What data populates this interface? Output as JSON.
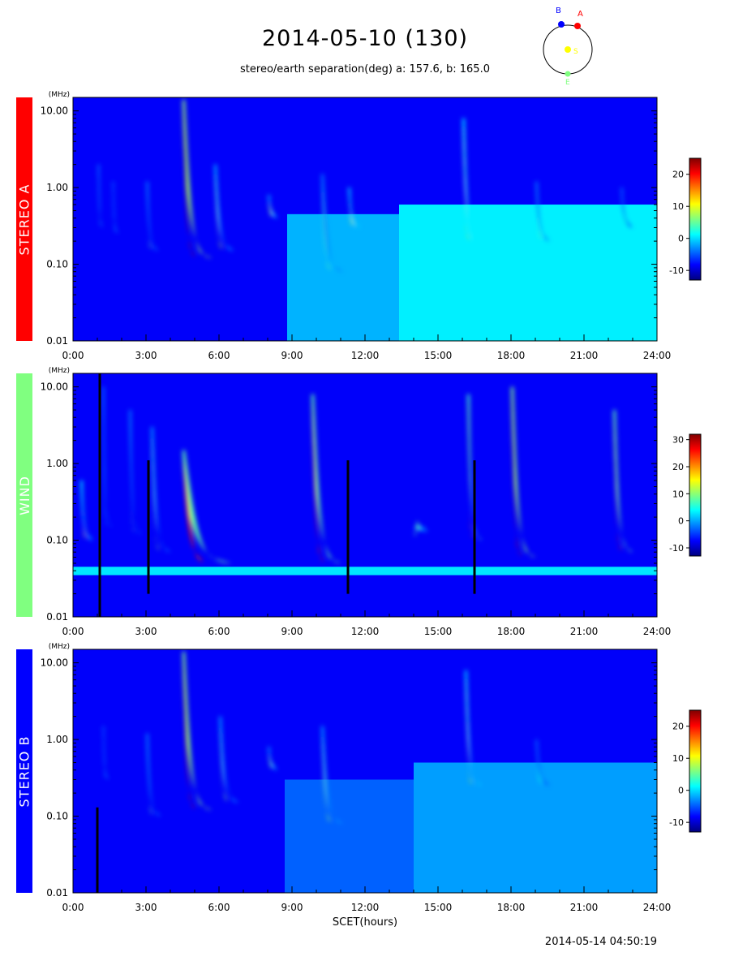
{
  "header": {
    "title": "2014-05-10 (130)",
    "subtitle": "stereo/earth separation(deg) a: 157.6, b: 165.0",
    "timestamp": "2014-05-14 04:50:19"
  },
  "orbit_diagram": {
    "labels": {
      "b": "B",
      "a": "A",
      "s": "S",
      "e": "E"
    },
    "colors": {
      "b": "#0000ff",
      "a": "#ff0000",
      "s": "#ffff00",
      "e": "#80ff80"
    }
  },
  "colormap": [
    "#00007f",
    "#0000ff",
    "#0080ff",
    "#00ffff",
    "#80ff80",
    "#ffff00",
    "#ff8000",
    "#ff0000",
    "#7f0000"
  ],
  "chart_data": [
    {
      "type": "heatmap",
      "panel": "STEREO A",
      "label_color": "#ff0000",
      "yunit": "(MHz)",
      "yscale": "log",
      "ylim": [
        0.01,
        15
      ],
      "yticks": [
        {
          "v": 0.01,
          "t": "0.01"
        },
        {
          "v": 0.1,
          "t": "0.10"
        },
        {
          "v": 1,
          "t": "1.00"
        },
        {
          "v": 10,
          "t": "10.00"
        }
      ],
      "xlim": [
        0,
        24
      ],
      "xticks": [
        "0:00",
        "3:00",
        "6:00",
        "9:00",
        "12:00",
        "15:00",
        "18:00",
        "21:00",
        "24:00"
      ],
      "colorbar": {
        "range": [
          -13,
          25
        ],
        "ticks": [
          20,
          10,
          0,
          -10
        ]
      },
      "background_blocks": [
        {
          "t0": 8.8,
          "t1": 13.4,
          "fmin": 0.01,
          "fmax": 0.45,
          "level": 0.3
        },
        {
          "t0": 13.4,
          "t1": 24,
          "fmin": 0.01,
          "fmax": 0.6,
          "level": 0.36
        }
      ],
      "bursts": [
        {
          "t": 1.0,
          "f_top": 2.0,
          "f_bot": 0.3,
          "level": 0.4,
          "width": 0.25
        },
        {
          "t": 1.6,
          "f_top": 1.2,
          "f_bot": 0.25,
          "level": 0.35,
          "width": 0.3
        },
        {
          "t": 3.0,
          "f_top": 1.2,
          "f_bot": 0.15,
          "level": 0.45,
          "width": 0.5
        },
        {
          "t": 4.5,
          "f_top": 14,
          "f_bot": 0.12,
          "level": 0.95,
          "width": 1.2
        },
        {
          "t": 5.8,
          "f_top": 2.0,
          "f_bot": 0.15,
          "level": 0.55,
          "width": 0.8
        },
        {
          "t": 8.0,
          "f_top": 0.8,
          "f_bot": 0.4,
          "level": 0.55,
          "width": 0.4
        },
        {
          "t": 10.2,
          "f_top": 1.5,
          "f_bot": 0.08,
          "level": 0.45,
          "width": 0.9
        },
        {
          "t": 11.3,
          "f_top": 1.0,
          "f_bot": 0.3,
          "level": 0.6,
          "width": 0.5
        },
        {
          "t": 16.0,
          "f_top": 8.0,
          "f_bot": 0.2,
          "level": 0.65,
          "width": 0.7
        },
        {
          "t": 19.0,
          "f_top": 1.2,
          "f_bot": 0.2,
          "level": 0.45,
          "width": 0.6
        },
        {
          "t": 22.5,
          "f_top": 1.0,
          "f_bot": 0.3,
          "level": 0.4,
          "width": 0.5
        }
      ],
      "lines": []
    },
    {
      "type": "heatmap",
      "panel": "WIND",
      "label_color": "#80ff80",
      "yunit": "(MHz)",
      "yscale": "log",
      "ylim": [
        0.01,
        15
      ],
      "yticks": [
        {
          "v": 0.01,
          "t": "0.01"
        },
        {
          "v": 0.1,
          "t": "0.10"
        },
        {
          "v": 1,
          "t": "1.00"
        },
        {
          "v": 10,
          "t": "10.00"
        }
      ],
      "xlim": [
        0,
        24
      ],
      "xticks": [
        "0:00",
        "3:00",
        "6:00",
        "9:00",
        "12:00",
        "15:00",
        "18:00",
        "21:00",
        "24:00"
      ],
      "colorbar": {
        "range": [
          -13,
          32
        ],
        "ticks": [
          30,
          20,
          10,
          0,
          -10
        ]
      },
      "background_blocks": [
        {
          "t0": 0,
          "t1": 24,
          "fmin": 0.035,
          "fmax": 0.045,
          "level": 0.35
        }
      ],
      "bursts": [
        {
          "t": 0.3,
          "f_top": 0.6,
          "f_bot": 0.1,
          "level": 0.65,
          "width": 0.5
        },
        {
          "t": 1.2,
          "f_top": 10,
          "f_bot": 0.15,
          "level": 0.4,
          "width": 0.4
        },
        {
          "t": 2.3,
          "f_top": 5,
          "f_bot": 0.12,
          "level": 0.45,
          "width": 0.5
        },
        {
          "t": 3.2,
          "f_top": 3,
          "f_bot": 0.07,
          "level": 0.5,
          "width": 0.8
        },
        {
          "t": 4.5,
          "f_top": 1.5,
          "f_bot": 0.05,
          "level": 0.85,
          "width": 2.0
        },
        {
          "t": 9.8,
          "f_top": 8,
          "f_bot": 0.05,
          "level": 0.85,
          "width": 1.2
        },
        {
          "t": 14.0,
          "f_top": 0.15,
          "f_bot": 0.13,
          "level": 0.45,
          "width": 0.6
        },
        {
          "t": 16.2,
          "f_top": 8,
          "f_bot": 0.1,
          "level": 0.8,
          "width": 0.6
        },
        {
          "t": 18.0,
          "f_top": 10,
          "f_bot": 0.06,
          "level": 0.92,
          "width": 1.0
        },
        {
          "t": 22.2,
          "f_top": 5,
          "f_bot": 0.07,
          "level": 0.85,
          "width": 0.8
        }
      ],
      "lines": [
        {
          "t": 1.1,
          "fmin": 0.01,
          "fmax": 15
        },
        {
          "t": 3.1,
          "fmin": 0.02,
          "fmax": 1.1
        },
        {
          "t": 11.3,
          "fmin": 0.02,
          "fmax": 1.1
        },
        {
          "t": 16.5,
          "fmin": 0.02,
          "fmax": 1.1
        }
      ]
    },
    {
      "type": "heatmap",
      "panel": "STEREO B",
      "label_color": "#0000ff",
      "yunit": "(MHz)",
      "yscale": "log",
      "ylim": [
        0.01,
        15
      ],
      "yticks": [
        {
          "v": 0.01,
          "t": "0.01"
        },
        {
          "v": 0.1,
          "t": "0.10"
        },
        {
          "v": 1,
          "t": "1.00"
        },
        {
          "v": 10,
          "t": "10.00"
        }
      ],
      "xlim": [
        0,
        24
      ],
      "xticks": [
        "0:00",
        "3:00",
        "6:00",
        "9:00",
        "12:00",
        "15:00",
        "18:00",
        "21:00",
        "24:00"
      ],
      "xlabel": "SCET(hours)",
      "colorbar": {
        "range": [
          -13,
          25
        ],
        "ticks": [
          20,
          10,
          0,
          -10
        ]
      },
      "background_blocks": [
        {
          "t0": 8.7,
          "t1": 14.0,
          "fmin": 0.01,
          "fmax": 0.3,
          "level": 0.22
        },
        {
          "t0": 14.0,
          "t1": 24,
          "fmin": 0.01,
          "fmax": 0.5,
          "level": 0.28
        }
      ],
      "bursts": [
        {
          "t": 1.2,
          "f_top": 1.5,
          "f_bot": 0.3,
          "level": 0.35,
          "width": 0.3
        },
        {
          "t": 3.0,
          "f_top": 1.2,
          "f_bot": 0.1,
          "level": 0.45,
          "width": 0.6
        },
        {
          "t": 4.5,
          "f_top": 14,
          "f_bot": 0.12,
          "level": 0.92,
          "width": 1.2
        },
        {
          "t": 6.0,
          "f_top": 2.0,
          "f_bot": 0.15,
          "level": 0.5,
          "width": 0.8
        },
        {
          "t": 8.0,
          "f_top": 0.8,
          "f_bot": 0.4,
          "level": 0.5,
          "width": 0.4
        },
        {
          "t": 10.2,
          "f_top": 1.5,
          "f_bot": 0.08,
          "level": 0.5,
          "width": 0.9
        },
        {
          "t": 16.1,
          "f_top": 8.0,
          "f_bot": 0.25,
          "level": 0.6,
          "width": 0.7
        },
        {
          "t": 19.0,
          "f_top": 1.0,
          "f_bot": 0.25,
          "level": 0.4,
          "width": 0.6
        }
      ],
      "lines": [
        {
          "t": 1.0,
          "fmin": 0.01,
          "fmax": 0.13
        }
      ]
    }
  ]
}
